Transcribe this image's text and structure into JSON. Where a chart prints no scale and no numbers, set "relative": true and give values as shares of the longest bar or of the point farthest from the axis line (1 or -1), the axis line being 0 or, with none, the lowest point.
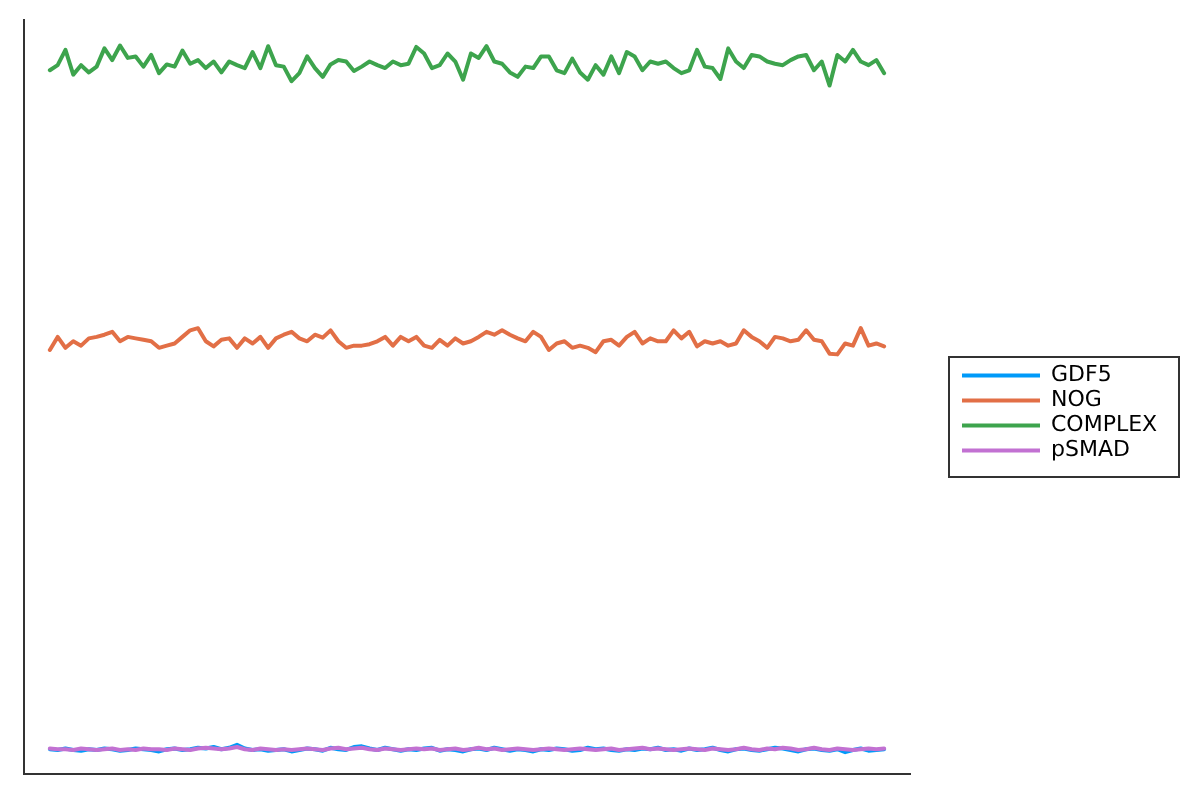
{
  "chart_data": {
    "type": "line",
    "relative": true,
    "legend": "right",
    "tick_labels": false,
    "categories": [
      null,
      null,
      null,
      null,
      null,
      null,
      null,
      null,
      null,
      null,
      null,
      null,
      null,
      null,
      null,
      null,
      null,
      null,
      null,
      null,
      null,
      null,
      null,
      null,
      null,
      null,
      null,
      null,
      null,
      null,
      null,
      null,
      null,
      null,
      null,
      null,
      null,
      null,
      null,
      null,
      null,
      null,
      null,
      null,
      null,
      null,
      null,
      null,
      null,
      null,
      null,
      null,
      null,
      null,
      null,
      null,
      null,
      null,
      null,
      null,
      null,
      null,
      null,
      null,
      null,
      null,
      null,
      null,
      null,
      null,
      null,
      null,
      null,
      null,
      null,
      null,
      null,
      null,
      null,
      null,
      null,
      null,
      null,
      null,
      null,
      null,
      null,
      null,
      null,
      null,
      null,
      null,
      null,
      null,
      null,
      null,
      null,
      null,
      null,
      null,
      null,
      null,
      null,
      null,
      null,
      null,
      null,
      null
    ],
    "series": [
      {
        "name": "GDF5",
        "color": "#009af9",
        "values": [
          0.034,
          0.033,
          0.035,
          0.033,
          0.032,
          0.034,
          0.033,
          0.035,
          0.034,
          0.032,
          0.033,
          0.035,
          0.034,
          0.033,
          0.031,
          0.034,
          0.035,
          0.033,
          0.034,
          0.036,
          0.035,
          0.037,
          0.034,
          0.036,
          0.04,
          0.035,
          0.033,
          0.034,
          0.032,
          0.033,
          0.034,
          0.031,
          0.033,
          0.035,
          0.034,
          0.032,
          0.036,
          0.034,
          0.033,
          0.037,
          0.038,
          0.035,
          0.033,
          0.036,
          0.034,
          0.032,
          0.034,
          0.033,
          0.035,
          0.036,
          0.032,
          0.034,
          0.033,
          0.031,
          0.034,
          0.035,
          0.033,
          0.036,
          0.034,
          0.032,
          0.034,
          0.033,
          0.031,
          0.034,
          0.033,
          0.035,
          0.034,
          0.032,
          0.033,
          0.036,
          0.034,
          0.035,
          0.033,
          0.032,
          0.034,
          0.033,
          0.035,
          0.034,
          0.036,
          0.033,
          0.034,
          0.032,
          0.035,
          0.033,
          0.034,
          0.036,
          0.033,
          0.031,
          0.034,
          0.035,
          0.033,
          0.032,
          0.034,
          0.036,
          0.035,
          0.033,
          0.031,
          0.034,
          0.035,
          0.033,
          0.032,
          0.034,
          0.03,
          0.033,
          0.035,
          0.032,
          0.033,
          0.034
        ]
      },
      {
        "name": "NOG",
        "color": "#e26f46",
        "values": [
          0.582,
          0.6,
          0.585,
          0.594,
          0.588,
          0.598,
          0.6,
          0.603,
          0.607,
          0.594,
          0.6,
          0.598,
          0.596,
          0.594,
          0.585,
          0.588,
          0.591,
          0.6,
          0.609,
          0.612,
          0.594,
          0.587,
          0.596,
          0.598,
          0.585,
          0.598,
          0.591,
          0.6,
          0.585,
          0.598,
          0.603,
          0.607,
          0.598,
          0.594,
          0.603,
          0.599,
          0.609,
          0.594,
          0.585,
          0.588,
          0.588,
          0.59,
          0.594,
          0.6,
          0.588,
          0.6,
          0.594,
          0.6,
          0.588,
          0.585,
          0.596,
          0.588,
          0.598,
          0.591,
          0.594,
          0.6,
          0.607,
          0.603,
          0.609,
          0.603,
          0.598,
          0.594,
          0.607,
          0.6,
          0.582,
          0.591,
          0.594,
          0.585,
          0.588,
          0.585,
          0.579,
          0.594,
          0.596,
          0.588,
          0.6,
          0.607,
          0.591,
          0.598,
          0.594,
          0.594,
          0.609,
          0.598,
          0.607,
          0.587,
          0.594,
          0.591,
          0.594,
          0.588,
          0.591,
          0.609,
          0.6,
          0.594,
          0.585,
          0.6,
          0.598,
          0.594,
          0.596,
          0.609,
          0.596,
          0.594,
          0.577,
          0.576,
          0.591,
          0.588,
          0.612,
          0.588,
          0.591,
          0.587
        ]
      },
      {
        "name": "COMPLEX",
        "color": "#3da44d",
        "values": [
          0.966,
          0.973,
          0.994,
          0.96,
          0.973,
          0.963,
          0.971,
          0.996,
          0.98,
          1,
          0.983,
          0.985,
          0.971,
          0.987,
          0.962,
          0.974,
          0.971,
          0.993,
          0.975,
          0.98,
          0.969,
          0.978,
          0.963,
          0.978,
          0.973,
          0.969,
          0.991,
          0.969,
          0.999,
          0.973,
          0.971,
          0.951,
          0.962,
          0.985,
          0.969,
          0.957,
          0.974,
          0.98,
          0.978,
          0.965,
          0.971,
          0.978,
          0.973,
          0.969,
          0.978,
          0.973,
          0.975,
          0.998,
          0.989,
          0.969,
          0.973,
          0.989,
          0.978,
          0.953,
          0.989,
          0.983,
          0.999,
          0.978,
          0.975,
          0.963,
          0.957,
          0.971,
          0.969,
          0.985,
          0.985,
          0.966,
          0.962,
          0.982,
          0.963,
          0.953,
          0.973,
          0.96,
          0.985,
          0.962,
          0.991,
          0.985,
          0.966,
          0.978,
          0.975,
          0.978,
          0.969,
          0.962,
          0.966,
          0.994,
          0.971,
          0.969,
          0.954,
          0.996,
          0.978,
          0.969,
          0.987,
          0.985,
          0.978,
          0.975,
          0.973,
          0.98,
          0.985,
          0.987,
          0.966,
          0.978,
          0.945,
          0.987,
          0.978,
          0.994,
          0.978,
          0.973,
          0.98,
          0.962
        ]
      },
      {
        "name": "pSMAD",
        "color": "#c271d2",
        "values": [
          0.035,
          0.034,
          0.034,
          0.033,
          0.035,
          0.034,
          0.033,
          0.034,
          0.035,
          0.033,
          0.034,
          0.033,
          0.035,
          0.034,
          0.034,
          0.033,
          0.035,
          0.034,
          0.033,
          0.035,
          0.036,
          0.035,
          0.034,
          0.035,
          0.037,
          0.034,
          0.033,
          0.035,
          0.034,
          0.033,
          0.034,
          0.033,
          0.034,
          0.035,
          0.034,
          0.033,
          0.035,
          0.036,
          0.034,
          0.035,
          0.036,
          0.034,
          0.033,
          0.035,
          0.034,
          0.033,
          0.034,
          0.035,
          0.034,
          0.035,
          0.033,
          0.034,
          0.035,
          0.033,
          0.034,
          0.036,
          0.034,
          0.035,
          0.033,
          0.034,
          0.035,
          0.034,
          0.033,
          0.034,
          0.035,
          0.034,
          0.033,
          0.034,
          0.035,
          0.034,
          0.033,
          0.034,
          0.035,
          0.033,
          0.034,
          0.035,
          0.036,
          0.034,
          0.035,
          0.034,
          0.033,
          0.034,
          0.035,
          0.034,
          0.033,
          0.035,
          0.034,
          0.033,
          0.034,
          0.036,
          0.034,
          0.033,
          0.035,
          0.034,
          0.036,
          0.035,
          0.033,
          0.034,
          0.036,
          0.034,
          0.033,
          0.035,
          0.034,
          0.033,
          0.034,
          0.035,
          0.034,
          0.035
        ]
      }
    ]
  }
}
